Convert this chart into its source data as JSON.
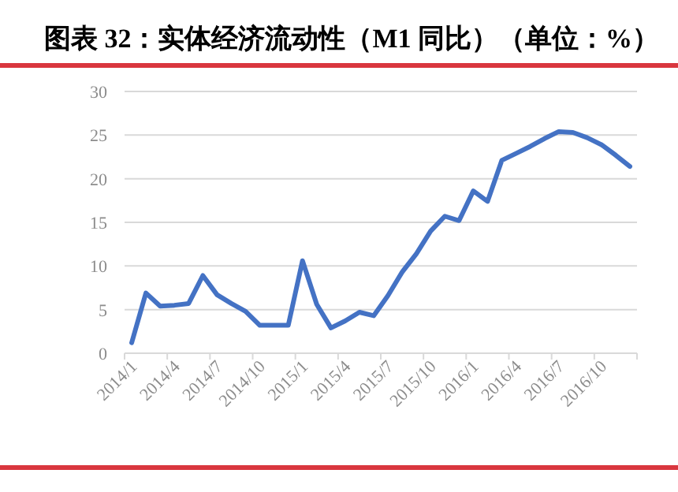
{
  "chart_data": {
    "type": "line",
    "title": "图表 32：实体经济流动性（M1 同比）（单位：%）",
    "categories": [
      "2014/1",
      null,
      null,
      "2014/4",
      null,
      null,
      "2014/7",
      null,
      null,
      "2014/10",
      null,
      null,
      "2015/1",
      null,
      null,
      "2015/4",
      null,
      null,
      "2015/7",
      null,
      null,
      "2015/10",
      null,
      null,
      "2016/1",
      null,
      null,
      "2016/4",
      null,
      null,
      "2016/7",
      null,
      null,
      "2016/10",
      null,
      null
    ],
    "series": [
      {
        "color": "#4472c4",
        "values": [
          1.2,
          6.9,
          5.4,
          5.5,
          5.7,
          8.9,
          6.7,
          5.7,
          4.8,
          3.2,
          3.2,
          3.2,
          10.6,
          5.6,
          2.9,
          3.7,
          4.7,
          4.3,
          6.6,
          9.3,
          11.4,
          14.0,
          15.7,
          15.2,
          18.6,
          17.4,
          22.1,
          22.9,
          23.7,
          24.6,
          25.4,
          25.3,
          24.7,
          23.9,
          22.7,
          21.4
        ]
      }
    ],
    "ylim": [
      0,
      30
    ],
    "yticks": [
      0,
      5,
      10,
      15,
      20,
      25,
      30
    ],
    "grid": "y",
    "marker": "none",
    "line_style": "solid"
  }
}
